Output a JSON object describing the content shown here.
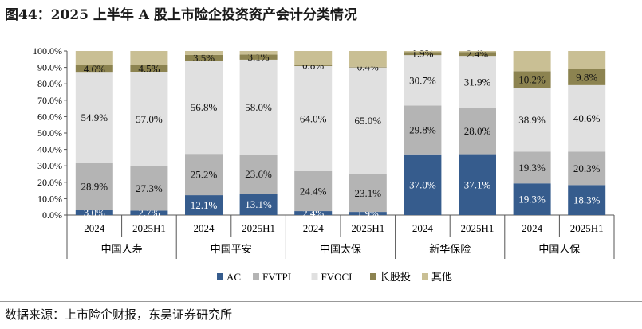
{
  "title": "图44：2025 上半年 A 股上市险企投资资产会计分类情况",
  "source": "数据来源：上市险企财报，东吴证券研究所",
  "chart_data": {
    "type": "stacked-bar",
    "ylim": [
      0,
      100
    ],
    "yticks": [
      "0.0%",
      "10.0%",
      "20.0%",
      "30.0%",
      "40.0%",
      "50.0%",
      "60.0%",
      "70.0%",
      "80.0%",
      "90.0%",
      "100.0%"
    ],
    "groups": [
      {
        "name": "中国人寿",
        "periods": [
          "2024",
          "2025H1"
        ]
      },
      {
        "name": "中国平安",
        "periods": [
          "2024",
          "2025H1"
        ]
      },
      {
        "name": "中国太保",
        "periods": [
          "2024",
          "2025H1"
        ]
      },
      {
        "name": "新华保险",
        "periods": [
          "2024",
          "2025H1"
        ]
      },
      {
        "name": "中国人保",
        "periods": [
          "2024",
          "2025H1"
        ]
      }
    ],
    "series": [
      {
        "name": "AC",
        "color": "#365C8D",
        "values": [
          3.0,
          2.7,
          12.1,
          13.1,
          2.4,
          1.9,
          37.0,
          37.1,
          19.3,
          18.3
        ],
        "label_color": "#ffffff"
      },
      {
        "name": "FVTPL",
        "color": "#B4B4B4",
        "values": [
          28.9,
          27.3,
          25.2,
          23.6,
          24.4,
          23.1,
          29.8,
          28.0,
          19.3,
          20.3
        ],
        "label_color": "#111111"
      },
      {
        "name": "FVOCI",
        "color": "#E0E0E0",
        "values": [
          54.9,
          57.0,
          56.8,
          58.0,
          64.0,
          65.0,
          30.7,
          31.9,
          38.9,
          40.6
        ],
        "label_color": "#111111"
      },
      {
        "name": "长股投",
        "color": "#8C8350",
        "values": [
          4.6,
          4.5,
          3.5,
          3.1,
          0.8,
          0.4,
          1.9,
          2.4,
          10.2,
          9.8
        ],
        "label_color": "#111111"
      },
      {
        "name": "其他",
        "color": "#C9BF94",
        "values": [
          8.6,
          8.5,
          2.4,
          2.2,
          8.4,
          9.6,
          0.6,
          0.6,
          12.3,
          11.0
        ],
        "label_color": null
      }
    ],
    "legend_position": "bottom",
    "grid": false
  }
}
